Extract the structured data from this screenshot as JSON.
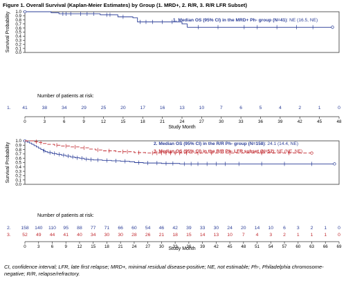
{
  "figure_title": "Figure 1. Overall Survival (Kaplan-Meier Estimates) by Group (1. MRD+, 2. R/R, 3. R/R LFR Subset)",
  "footnote": "CI, confidence interval; LFR, late first relapse; MRD+, minimal residual disease-positive; NE, not estimable; Ph-, Philadelphia chromosome-negative; R/R, relapse/refractory.",
  "colors": {
    "blue": "#2a3d97",
    "red": "#c0272d",
    "axis": "#333333"
  },
  "chart_data": [
    {
      "type": "line",
      "subtype": "kaplan-meier",
      "title": "",
      "xlabel": "Study Month",
      "ylabel": "Survival Probability",
      "xlim": [
        0,
        48
      ],
      "ylim": [
        0.0,
        1.0
      ],
      "x_ticks": [
        0,
        3,
        6,
        9,
        12,
        15,
        18,
        21,
        24,
        27,
        30,
        33,
        36,
        39,
        42,
        45,
        48
      ],
      "y_ticks": [
        "0.0",
        "0.1",
        "0.2",
        "0.3",
        "0.4",
        "0.5",
        "0.6",
        "0.7",
        "0.8",
        "0.9",
        "1.0"
      ],
      "series": [
        {
          "marker": "1.",
          "color": "#2a3d97",
          "legend": [
            {
              "text": "1. Median OS (95% CI) in the MRD+ Ph- group (N=41)",
              "bold": true
            },
            {
              "text": ": NE (16.5, NE)",
              "bold": false
            }
          ],
          "steps": [
            [
              0,
              1.0
            ],
            [
              4.0,
              0.975
            ],
            [
              5.2,
              0.95
            ],
            [
              11.5,
              0.925
            ],
            [
              14.2,
              0.875
            ],
            [
              16.5,
              0.85
            ],
            [
              17.2,
              0.75
            ],
            [
              24.0,
              0.7
            ],
            [
              24.8,
              0.62
            ],
            [
              47.0,
              0.62
            ]
          ],
          "censors": [
            [
              5.8,
              0.95
            ],
            [
              6.3,
              0.95
            ],
            [
              7.0,
              0.95
            ],
            [
              8.5,
              0.95
            ],
            [
              9.5,
              0.95
            ],
            [
              10.5,
              0.95
            ],
            [
              12.5,
              0.925
            ],
            [
              13.0,
              0.925
            ],
            [
              15.0,
              0.875
            ],
            [
              17.6,
              0.75
            ],
            [
              18.5,
              0.75
            ],
            [
              19.5,
              0.75
            ],
            [
              21.0,
              0.75
            ],
            [
              22.5,
              0.75
            ],
            [
              26.5,
              0.62
            ],
            [
              29.5,
              0.62
            ],
            [
              33.5,
              0.62
            ],
            [
              35.5,
              0.62
            ],
            [
              38.5,
              0.62
            ],
            [
              41.5,
              0.62
            ],
            [
              44.0,
              0.62
            ]
          ],
          "circles": [
            [
              0,
              1.0
            ],
            [
              47.0,
              0.62
            ]
          ]
        }
      ],
      "at_risk_title": "Number of patients at risk:",
      "at_risk": [
        {
          "marker": "1.",
          "color": "#2a3d97",
          "counts": [
            "41",
            "38",
            "34",
            "29",
            "25",
            "20",
            "17",
            "16",
            "13",
            "10",
            "7",
            "6",
            "5",
            "4",
            "2",
            "1",
            "0"
          ]
        }
      ]
    },
    {
      "type": "line",
      "subtype": "kaplan-meier",
      "title": "",
      "xlabel": "Study Month",
      "ylabel": "Survival Probability",
      "xlim": [
        0,
        69
      ],
      "ylim": [
        0.0,
        1.0
      ],
      "x_ticks": [
        0,
        3,
        6,
        9,
        12,
        15,
        18,
        21,
        24,
        27,
        30,
        33,
        36,
        39,
        42,
        45,
        48,
        51,
        54,
        57,
        60,
        63,
        66,
        69
      ],
      "y_ticks": [
        "0.0",
        "0.1",
        "0.2",
        "0.3",
        "0.4",
        "0.5",
        "0.6",
        "0.7",
        "0.8",
        "0.9",
        "1.0"
      ],
      "series": [
        {
          "marker": "2.",
          "color": "#2a3d97",
          "legend": [
            {
              "text": "2. Median OS (95% CI) in the R/R Ph- group (N=158)",
              "bold": true
            },
            {
              "text": ": 24.1 (14.4, NE)",
              "bold": false
            }
          ],
          "steps": [
            [
              0,
              1.0
            ],
            [
              0.5,
              0.97
            ],
            [
              1.0,
              0.95
            ],
            [
              1.5,
              0.92
            ],
            [
              2.0,
              0.89
            ],
            [
              2.5,
              0.86
            ],
            [
              3.0,
              0.83
            ],
            [
              3.5,
              0.8
            ],
            [
              4.0,
              0.77
            ],
            [
              4.5,
              0.75
            ],
            [
              5.0,
              0.73
            ],
            [
              6.0,
              0.71
            ],
            [
              7.0,
              0.69
            ],
            [
              8.0,
              0.67
            ],
            [
              9.0,
              0.65
            ],
            [
              10.0,
              0.63
            ],
            [
              11.0,
              0.61
            ],
            [
              12.0,
              0.6
            ],
            [
              13.0,
              0.58
            ],
            [
              14.0,
              0.57
            ],
            [
              15.0,
              0.56
            ],
            [
              17.0,
              0.55
            ],
            [
              19.0,
              0.54
            ],
            [
              21.0,
              0.53
            ],
            [
              23.0,
              0.52
            ],
            [
              24.1,
              0.5
            ],
            [
              26.0,
              0.49
            ],
            [
              30.0,
              0.48
            ],
            [
              34.0,
              0.47
            ],
            [
              68.0,
              0.47
            ]
          ],
          "censors": [
            [
              4.2,
              0.77
            ],
            [
              5.5,
              0.73
            ],
            [
              6.5,
              0.71
            ],
            [
              7.5,
              0.69
            ],
            [
              8.5,
              0.67
            ],
            [
              9.5,
              0.65
            ],
            [
              10.5,
              0.63
            ],
            [
              11.5,
              0.61
            ],
            [
              12.5,
              0.6
            ],
            [
              13.5,
              0.58
            ],
            [
              14.5,
              0.57
            ],
            [
              16.0,
              0.56
            ],
            [
              18.0,
              0.55
            ],
            [
              20.0,
              0.54
            ],
            [
              22.0,
              0.53
            ],
            [
              25.0,
              0.5
            ],
            [
              27.0,
              0.49
            ],
            [
              29.0,
              0.49
            ],
            [
              31.0,
              0.48
            ],
            [
              32.5,
              0.48
            ],
            [
              35.0,
              0.47
            ],
            [
              36.5,
              0.47
            ],
            [
              38.0,
              0.47
            ],
            [
              40.0,
              0.47
            ],
            [
              42.0,
              0.47
            ],
            [
              44.0,
              0.47
            ],
            [
              47.0,
              0.47
            ],
            [
              52.0,
              0.47
            ],
            [
              57.0,
              0.47
            ],
            [
              63.0,
              0.47
            ]
          ],
          "circles": [
            [
              0,
              1.0
            ],
            [
              68.0,
              0.47
            ]
          ]
        },
        {
          "marker": "3.",
          "color": "#c0272d",
          "dashed": true,
          "legend": [
            {
              "text": "3. Median OS (95% CI) in the R/R Ph- LFR subset (N=52)",
              "bold": true
            },
            {
              "text": ": NE (NE, NE)",
              "bold": false
            }
          ],
          "steps": [
            [
              0,
              1.0
            ],
            [
              2.0,
              0.98
            ],
            [
              3.0,
              0.96
            ],
            [
              4.0,
              0.94
            ],
            [
              5.0,
              0.92
            ],
            [
              6.5,
              0.9
            ],
            [
              8.0,
              0.88
            ],
            [
              10.0,
              0.86
            ],
            [
              12.0,
              0.84
            ],
            [
              14.0,
              0.81
            ],
            [
              15.5,
              0.79
            ],
            [
              17.0,
              0.77
            ],
            [
              20.0,
              0.75
            ],
            [
              24.0,
              0.73
            ],
            [
              26.5,
              0.72
            ],
            [
              63.0,
              0.72
            ]
          ],
          "censors": [
            [
              2.5,
              0.98
            ],
            [
              3.5,
              0.96
            ],
            [
              7.0,
              0.9
            ],
            [
              9.0,
              0.88
            ],
            [
              11.0,
              0.86
            ],
            [
              13.0,
              0.84
            ],
            [
              16.0,
              0.79
            ],
            [
              18.5,
              0.77
            ],
            [
              21.5,
              0.75
            ],
            [
              22.5,
              0.75
            ],
            [
              25.0,
              0.73
            ],
            [
              28.0,
              0.72
            ],
            [
              29.0,
              0.72
            ],
            [
              30.0,
              0.72
            ],
            [
              31.0,
              0.72
            ],
            [
              32.0,
              0.72
            ],
            [
              33.0,
              0.72
            ],
            [
              34.0,
              0.72
            ],
            [
              35.5,
              0.72
            ],
            [
              38.0,
              0.72
            ],
            [
              41.0,
              0.72
            ],
            [
              45.0,
              0.72
            ],
            [
              52.0,
              0.72
            ],
            [
              58.0,
              0.72
            ]
          ],
          "circles": [
            [
              63.0,
              0.72
            ]
          ]
        }
      ],
      "at_risk_title": "Number of patients at risk:",
      "at_risk": [
        {
          "marker": "2.",
          "color": "#2a3d97",
          "counts": [
            "158",
            "140",
            "110",
            "95",
            "88",
            "77",
            "71",
            "66",
            "60",
            "54",
            "46",
            "42",
            "39",
            "33",
            "30",
            "24",
            "20",
            "14",
            "10",
            "6",
            "3",
            "2",
            "1",
            "0"
          ]
        },
        {
          "marker": "3.",
          "color": "#c0272d",
          "counts": [
            "52",
            "49",
            "44",
            "41",
            "40",
            "34",
            "30",
            "30",
            "28",
            "26",
            "21",
            "18",
            "15",
            "14",
            "13",
            "10",
            "7",
            "4",
            "3",
            "2",
            "1",
            "1",
            "1",
            "0"
          ]
        }
      ]
    }
  ]
}
